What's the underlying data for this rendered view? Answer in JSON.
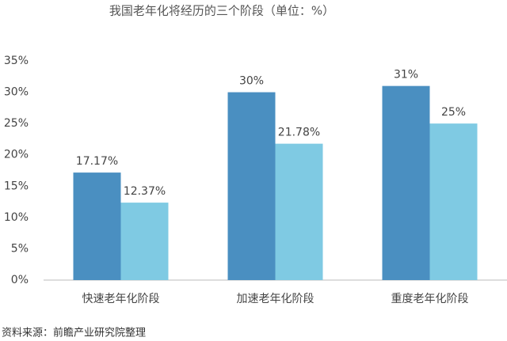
{
  "chart_data": {
    "type": "bar",
    "title": "我国老年化将经历的三个阶段（单位：%）",
    "categories": [
      "快速老年化阶段",
      "加速老年化阶段",
      "重度老年化阶段"
    ],
    "series": [
      {
        "color": "#4a8fc1",
        "values": [
          17.17,
          30,
          31
        ],
        "value_labels": [
          "17.17%",
          "30%",
          "31%"
        ]
      },
      {
        "color": "#7fcae3",
        "values": [
          12.37,
          21.78,
          25
        ],
        "value_labels": [
          "12.37%",
          "21.78%",
          "25%"
        ]
      }
    ],
    "ylim": [
      0,
      35
    ],
    "yticks": [
      {
        "value": 0,
        "label": "0%"
      },
      {
        "value": 5,
        "label": "5%"
      },
      {
        "value": 10,
        "label": "10%"
      },
      {
        "value": 15,
        "label": "15%"
      },
      {
        "value": 20,
        "label": "20%"
      },
      {
        "value": 25,
        "label": "25%"
      },
      {
        "value": 30,
        "label": "30%"
      },
      {
        "value": 35,
        "label": "35%"
      }
    ],
    "grid": false,
    "source": "资料来源：前瞻产业研究院整理"
  }
}
